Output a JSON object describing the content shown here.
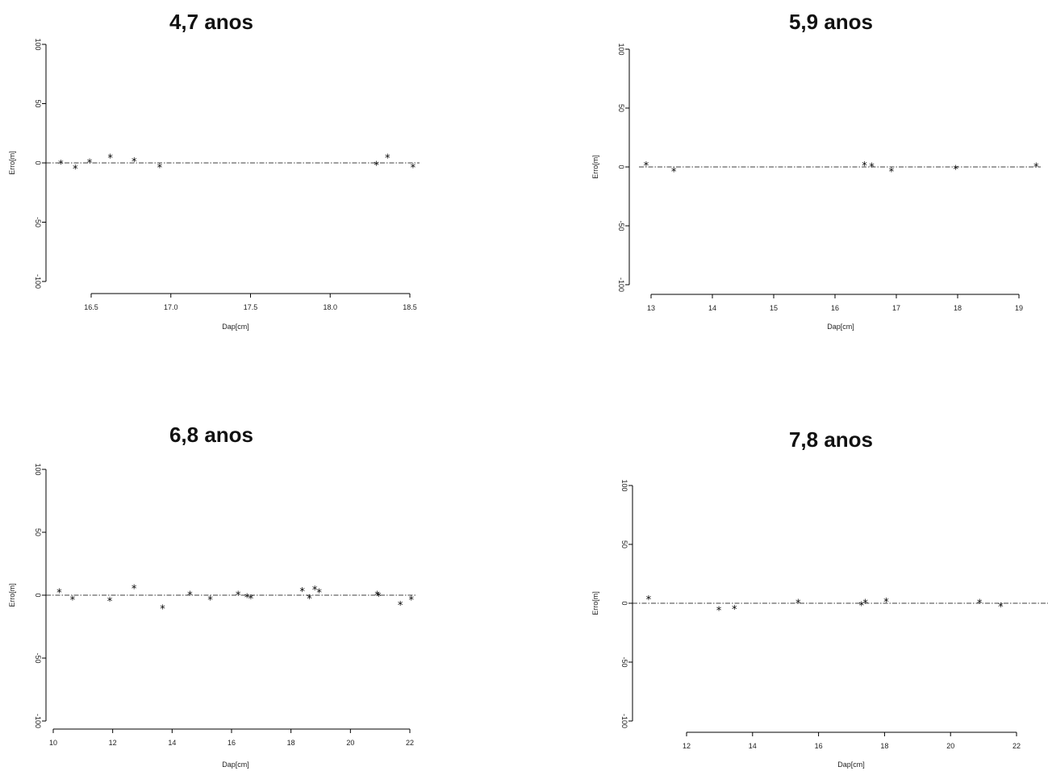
{
  "chart_data": [
    {
      "type": "scatter",
      "title": "4,7 anos",
      "xlabel": "Dap[cm]",
      "ylabel": "Erro[m]",
      "xticks": [
        "16.5",
        "17.0",
        "17.5",
        "18.0",
        "18.5"
      ],
      "yticks": [
        "-100",
        "-50",
        "0",
        "50",
        "100"
      ],
      "xlim": [
        16.3,
        18.52
      ],
      "ylim": [
        -100,
        100
      ],
      "reference_line_y": 0,
      "marker": "*",
      "points": [
        {
          "x": 16.31,
          "y": 0
        },
        {
          "x": 16.4,
          "y": -4
        },
        {
          "x": 16.49,
          "y": 1
        },
        {
          "x": 16.62,
          "y": 5
        },
        {
          "x": 16.77,
          "y": 2
        },
        {
          "x": 16.93,
          "y": -3
        },
        {
          "x": 18.29,
          "y": -1
        },
        {
          "x": 18.36,
          "y": 5
        },
        {
          "x": 18.52,
          "y": -3
        }
      ]
    },
    {
      "type": "scatter",
      "title": "5,9 anos",
      "xlabel": "Dap[cm]",
      "ylabel": "Erro[m]",
      "xticks": [
        "13",
        "14",
        "15",
        "16",
        "17",
        "18",
        "19"
      ],
      "yticks": [
        "-100",
        "-50",
        "0",
        "50",
        "100"
      ],
      "xlim": [
        12.9,
        19.3
      ],
      "ylim": [
        -100,
        100
      ],
      "reference_line_y": 0,
      "marker": "*",
      "points": [
        {
          "x": 12.92,
          "y": 2
        },
        {
          "x": 13.37,
          "y": -3
        },
        {
          "x": 16.48,
          "y": 2
        },
        {
          "x": 16.6,
          "y": 1
        },
        {
          "x": 16.92,
          "y": -3
        },
        {
          "x": 17.97,
          "y": -1
        },
        {
          "x": 19.28,
          "y": 1
        }
      ]
    },
    {
      "type": "scatter",
      "title": "6,8 anos",
      "xlabel": "Dap[cm]",
      "ylabel": "Erro[m]",
      "xticks": [
        "10",
        "12",
        "14",
        "16",
        "18",
        "20",
        "22"
      ],
      "yticks": [
        "-100",
        "-50",
        "0",
        "50",
        "100"
      ],
      "xlim": [
        10.0,
        22.0
      ],
      "ylim": [
        -100,
        100
      ],
      "reference_line_y": 0,
      "marker": "*",
      "points": [
        {
          "x": 10.2,
          "y": 3
        },
        {
          "x": 10.65,
          "y": -3
        },
        {
          "x": 11.9,
          "y": -4
        },
        {
          "x": 12.72,
          "y": 6
        },
        {
          "x": 13.68,
          "y": -10
        },
        {
          "x": 14.6,
          "y": 1
        },
        {
          "x": 15.28,
          "y": -3
        },
        {
          "x": 16.22,
          "y": 1
        },
        {
          "x": 16.52,
          "y": -1
        },
        {
          "x": 16.65,
          "y": -2
        },
        {
          "x": 18.38,
          "y": 4
        },
        {
          "x": 18.62,
          "y": -2
        },
        {
          "x": 18.8,
          "y": 5
        },
        {
          "x": 18.95,
          "y": 3
        },
        {
          "x": 20.9,
          "y": 1
        },
        {
          "x": 20.95,
          "y": 0
        },
        {
          "x": 21.68,
          "y": -7
        },
        {
          "x": 22.05,
          "y": -3
        }
      ]
    },
    {
      "type": "scatter",
      "title": "7,8 anos",
      "xlabel": "Dap[cm]",
      "ylabel": "Erro[m]",
      "xticks": [
        "12",
        "14",
        "16",
        "18",
        "20",
        "22"
      ],
      "yticks": [
        "-100",
        "-50",
        "0",
        "50",
        "100"
      ],
      "xlim": [
        10.8,
        22.5
      ],
      "ylim": [
        -100,
        100
      ],
      "reference_line_y": 0,
      "marker": "*",
      "points": [
        {
          "x": 10.85,
          "y": 4
        },
        {
          "x": 12.98,
          "y": -5
        },
        {
          "x": 13.45,
          "y": -4
        },
        {
          "x": 15.38,
          "y": 1
        },
        {
          "x": 17.3,
          "y": -1
        },
        {
          "x": 17.42,
          "y": 1
        },
        {
          "x": 18.05,
          "y": 2
        },
        {
          "x": 20.88,
          "y": 1
        },
        {
          "x": 21.52,
          "y": -2
        }
      ]
    }
  ]
}
